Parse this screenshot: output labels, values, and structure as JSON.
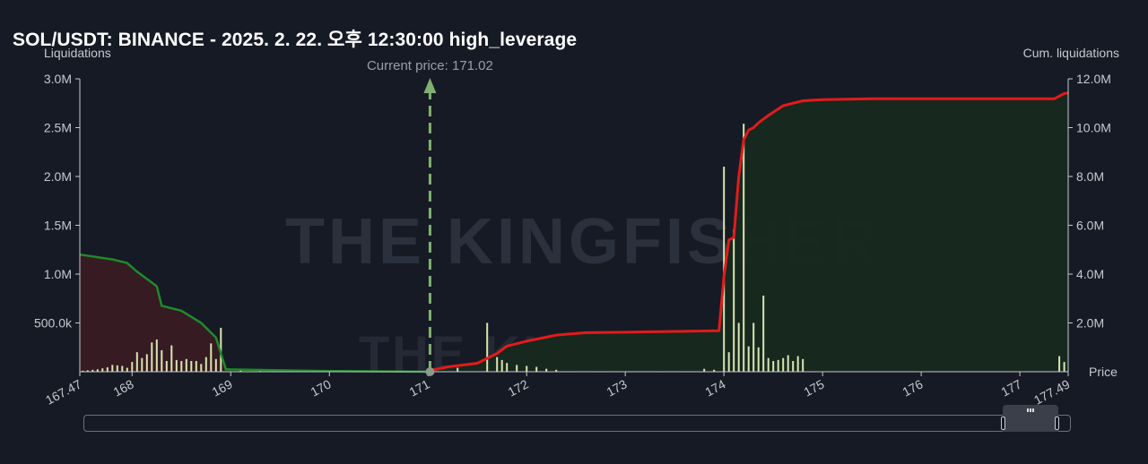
{
  "title": "SOL/USDT: BINANCE - 2025. 2. 22. 오후 12:30:00 high_leverage",
  "current_price_label": "Current price: 171.02",
  "watermark": {
    "main": "THE KINGFISHER",
    "suffix": ".io"
  },
  "colors": {
    "background": "#161a25",
    "short_liq_area": "#3a1c24",
    "long_liq_area": "#17291f",
    "short_cum_line": "#1f8a2a",
    "long_cum_line": "#e21b1b",
    "bars": "#d8e6b0",
    "current_price_line": "#7fb070"
  },
  "chart_data": {
    "type": "bar",
    "title": "SOL/USDT: BINANCE - 2025. 2. 22. 오후 12:30:00 high_leverage",
    "xlabel": "Price",
    "ylabel_left": "Liquidations",
    "ylabel_right": "Cum. liquidations",
    "xlim": [
      167.47,
      177.49
    ],
    "ylim_left": [
      0,
      3000000
    ],
    "ylim_right": [
      0,
      12000000
    ],
    "x_tick_labels": [
      "167.47",
      "168",
      "169",
      "170",
      "171",
      "172",
      "173",
      "174",
      "175",
      "176",
      "177",
      "177.49"
    ],
    "x_tick_values": [
      167.47,
      168,
      169,
      170,
      171,
      172,
      173,
      174,
      175,
      176,
      177,
      177.49
    ],
    "y_left_ticks": [
      "500.0k",
      "1.0M",
      "1.5M",
      "2.0M",
      "2.5M",
      "3.0M"
    ],
    "y_left_tick_values": [
      500000,
      1000000,
      1500000,
      2000000,
      2500000,
      3000000
    ],
    "y_right_ticks": [
      "2.0M",
      "4.0M",
      "6.0M",
      "8.0M",
      "10.0M",
      "12.0M"
    ],
    "y_right_tick_values": [
      2000000,
      4000000,
      6000000,
      8000000,
      10000000,
      12000000
    ],
    "current_price": 171.02,
    "grid": false,
    "series": [
      {
        "name": "Cum. short-side liquidations",
        "type": "area",
        "axis": "right",
        "x": [
          167.47,
          167.8,
          167.95,
          168.05,
          168.15,
          168.25,
          168.3,
          168.5,
          168.7,
          168.85,
          168.95,
          169.5,
          170.0,
          171.02
        ],
        "y": [
          4800000,
          4600000,
          4450000,
          4100000,
          3800000,
          3500000,
          2700000,
          2500000,
          2000000,
          1400000,
          100000,
          60000,
          30000,
          0
        ]
      },
      {
        "name": "Cum. long-side liquidations",
        "type": "area",
        "axis": "right",
        "x": [
          171.02,
          171.2,
          171.5,
          171.7,
          171.8,
          172.0,
          172.3,
          172.6,
          173.0,
          173.5,
          173.95,
          174.0,
          174.05,
          174.1,
          174.15,
          174.2,
          174.25,
          174.3,
          174.35,
          174.45,
          174.6,
          174.8,
          175.0,
          175.5,
          176.0,
          177.0,
          177.35,
          177.45,
          177.49
        ],
        "y": [
          50000,
          200000,
          350000,
          750000,
          1050000,
          1250000,
          1500000,
          1600000,
          1620000,
          1650000,
          1680000,
          3900000,
          5400000,
          5500000,
          8000000,
          9500000,
          9900000,
          10000000,
          10200000,
          10500000,
          10900000,
          11100000,
          11150000,
          11180000,
          11180000,
          11180000,
          11180000,
          11400000,
          11420000
        ]
      },
      {
        "name": "Liquidations",
        "type": "bar",
        "axis": "left",
        "x": [
          167.5,
          167.55,
          167.6,
          167.65,
          167.7,
          167.75,
          167.8,
          167.85,
          167.9,
          167.95,
          168.0,
          168.05,
          168.1,
          168.15,
          168.2,
          168.25,
          168.3,
          168.35,
          168.4,
          168.45,
          168.5,
          168.55,
          168.6,
          168.65,
          168.7,
          168.75,
          168.8,
          168.85,
          168.9,
          169.1,
          169.3,
          171.3,
          171.6,
          171.7,
          171.75,
          171.8,
          171.9,
          172.0,
          172.1,
          172.2,
          172.3,
          173.8,
          173.9,
          174.0,
          174.05,
          174.1,
          174.15,
          174.2,
          174.25,
          174.3,
          174.35,
          174.4,
          174.45,
          174.5,
          174.55,
          174.6,
          174.65,
          174.7,
          174.75,
          174.8,
          177.4,
          177.45
        ],
        "y": [
          10000,
          15000,
          20000,
          25000,
          35000,
          45000,
          70000,
          65000,
          60000,
          40000,
          100000,
          200000,
          140000,
          180000,
          300000,
          330000,
          220000,
          110000,
          270000,
          120000,
          110000,
          130000,
          110000,
          110000,
          80000,
          150000,
          290000,
          130000,
          450000,
          30000,
          20000,
          40000,
          500000,
          150000,
          120000,
          90000,
          70000,
          60000,
          50000,
          30000,
          20000,
          30000,
          20000,
          2100000,
          200000,
          1460000,
          500000,
          2540000,
          260000,
          500000,
          250000,
          780000,
          140000,
          110000,
          120000,
          140000,
          170000,
          110000,
          160000,
          130000,
          160000,
          100000
        ]
      }
    ]
  }
}
